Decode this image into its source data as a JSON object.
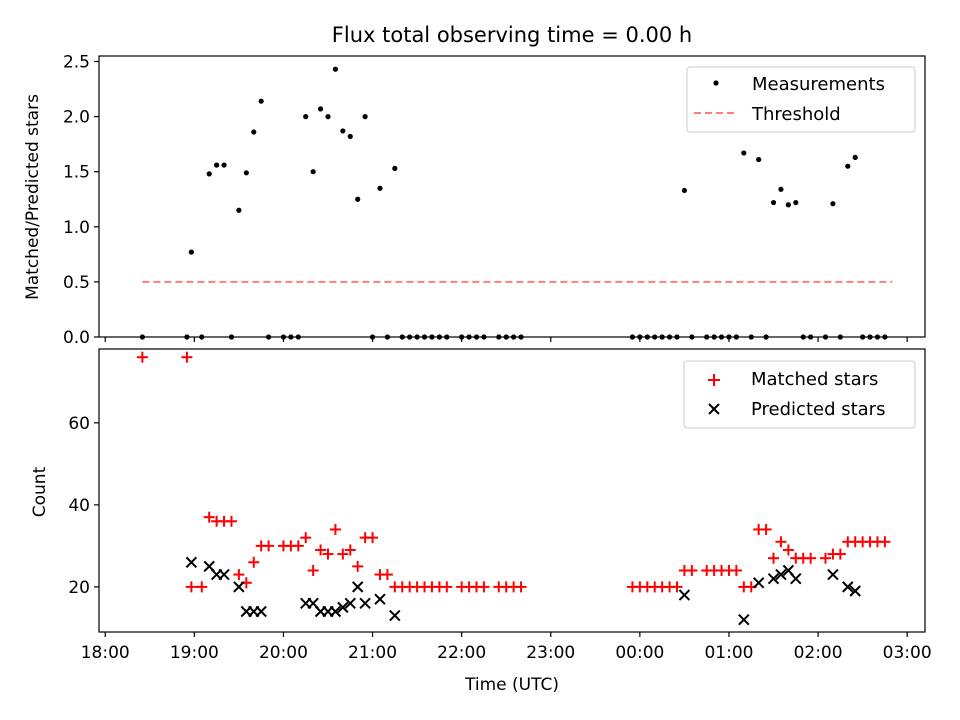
{
  "chart_data": [
    {
      "type": "scatter",
      "title": "Flux total observing time = 0.00 h",
      "xlabel": "",
      "ylabel": "Matched/Predicted stars",
      "ylim": [
        0,
        2.55
      ],
      "yticks": [
        0,
        0.5,
        1.0,
        1.5,
        2.0,
        2.5
      ],
      "ytick_labels": [
        "0.0",
        "0.5",
        "1.0",
        "1.5",
        "2.0",
        "2.5"
      ],
      "legend_position": "top-right",
      "series": [
        {
          "name": "Measurements",
          "marker": "dot",
          "color": "#000000",
          "points": [
            [
              "18:25",
              0
            ],
            [
              "18:55",
              0
            ],
            [
              "18:58",
              0.77
            ],
            [
              "19:05",
              0
            ],
            [
              "19:10",
              1.48
            ],
            [
              "19:15",
              1.56
            ],
            [
              "19:20",
              1.56
            ],
            [
              "19:25",
              0
            ],
            [
              "19:30",
              1.15
            ],
            [
              "19:35",
              1.49
            ],
            [
              "19:40",
              1.86
            ],
            [
              "19:45",
              2.14
            ],
            [
              "19:50",
              0
            ],
            [
              "20:00",
              0
            ],
            [
              "20:05",
              0
            ],
            [
              "20:10",
              0
            ],
            [
              "20:15",
              2.0
            ],
            [
              "20:20",
              1.5
            ],
            [
              "20:25",
              2.07
            ],
            [
              "20:30",
              2.0
            ],
            [
              "20:35",
              2.43
            ],
            [
              "20:40",
              1.87
            ],
            [
              "20:45",
              1.82
            ],
            [
              "20:50",
              1.25
            ],
            [
              "20:55",
              2.0
            ],
            [
              "21:00",
              0
            ],
            [
              "21:05",
              1.35
            ],
            [
              "21:10",
              0
            ],
            [
              "21:15",
              1.53
            ],
            [
              "21:20",
              0
            ],
            [
              "21:25",
              0
            ],
            [
              "21:30",
              0
            ],
            [
              "21:35",
              0
            ],
            [
              "21:40",
              0
            ],
            [
              "21:45",
              0
            ],
            [
              "21:50",
              0
            ],
            [
              "22:00",
              0
            ],
            [
              "22:05",
              0
            ],
            [
              "22:10",
              0
            ],
            [
              "22:15",
              0
            ],
            [
              "22:25",
              0
            ],
            [
              "22:30",
              0
            ],
            [
              "22:35",
              0
            ],
            [
              "22:40",
              0
            ],
            [
              "23:55",
              0
            ],
            [
              "00:00",
              0
            ],
            [
              "00:05",
              0
            ],
            [
              "00:10",
              0
            ],
            [
              "00:15",
              0
            ],
            [
              "00:20",
              0
            ],
            [
              "00:25",
              0
            ],
            [
              "00:30",
              1.33
            ],
            [
              "00:35",
              0
            ],
            [
              "00:45",
              0
            ],
            [
              "00:50",
              0
            ],
            [
              "00:55",
              0
            ],
            [
              "01:00",
              0
            ],
            [
              "01:05",
              0
            ],
            [
              "01:10",
              1.67
            ],
            [
              "01:15",
              0
            ],
            [
              "01:20",
              1.61
            ],
            [
              "01:25",
              0
            ],
            [
              "01:30",
              1.22
            ],
            [
              "01:35",
              1.34
            ],
            [
              "01:40",
              1.2
            ],
            [
              "01:45",
              1.22
            ],
            [
              "01:50",
              0
            ],
            [
              "01:55",
              0
            ],
            [
              "02:05",
              0
            ],
            [
              "02:10",
              1.21
            ],
            [
              "02:15",
              0
            ],
            [
              "02:20",
              1.55
            ],
            [
              "02:25",
              1.63
            ],
            [
              "02:30",
              0
            ],
            [
              "02:35",
              0
            ],
            [
              "02:40",
              0
            ],
            [
              "02:45",
              0
            ]
          ]
        },
        {
          "name": "Threshold",
          "marker": "dashed-line",
          "color": "#ff7f7f",
          "points": [
            [
              "18:25",
              0.5
            ],
            [
              "02:50",
              0.5
            ]
          ]
        }
      ]
    },
    {
      "type": "scatter",
      "title": "",
      "xlabel": "Time (UTC)",
      "ylabel": "Count",
      "ylim": [
        9,
        78
      ],
      "yticks": [
        20,
        40,
        60
      ],
      "ytick_labels": [
        "20",
        "40",
        "60"
      ],
      "x_start": "18:00",
      "x_end": "03:00",
      "xlim_hours": [
        17.93,
        27.2
      ],
      "xticks": [
        "18:00",
        "19:00",
        "20:00",
        "21:00",
        "22:00",
        "23:00",
        "00:00",
        "01:00",
        "02:00",
        "03:00"
      ],
      "legend_position": "top-right",
      "series": [
        {
          "name": "Matched stars",
          "marker": "plus",
          "color": "#ff0000",
          "points": [
            [
              "18:25",
              76
            ],
            [
              "18:55",
              76
            ],
            [
              "18:58",
              20
            ],
            [
              "19:05",
              20
            ],
            [
              "19:10",
              37
            ],
            [
              "19:15",
              36
            ],
            [
              "19:20",
              36
            ],
            [
              "19:25",
              36
            ],
            [
              "19:30",
              23
            ],
            [
              "19:35",
              21
            ],
            [
              "19:40",
              26
            ],
            [
              "19:45",
              30
            ],
            [
              "19:50",
              30
            ],
            [
              "20:00",
              30
            ],
            [
              "20:05",
              30
            ],
            [
              "20:10",
              30
            ],
            [
              "20:15",
              32
            ],
            [
              "20:20",
              24
            ],
            [
              "20:25",
              29
            ],
            [
              "20:30",
              28
            ],
            [
              "20:35",
              34
            ],
            [
              "20:40",
              28
            ],
            [
              "20:45",
              29
            ],
            [
              "20:50",
              25
            ],
            [
              "20:55",
              32
            ],
            [
              "21:00",
              32
            ],
            [
              "21:05",
              23
            ],
            [
              "21:10",
              23
            ],
            [
              "21:15",
              20
            ],
            [
              "21:20",
              20
            ],
            [
              "21:25",
              20
            ],
            [
              "21:30",
              20
            ],
            [
              "21:35",
              20
            ],
            [
              "21:40",
              20
            ],
            [
              "21:45",
              20
            ],
            [
              "21:50",
              20
            ],
            [
              "22:00",
              20
            ],
            [
              "22:05",
              20
            ],
            [
              "22:10",
              20
            ],
            [
              "22:15",
              20
            ],
            [
              "22:25",
              20
            ],
            [
              "22:30",
              20
            ],
            [
              "22:35",
              20
            ],
            [
              "22:40",
              20
            ],
            [
              "23:55",
              20
            ],
            [
              "00:00",
              20
            ],
            [
              "00:05",
              20
            ],
            [
              "00:10",
              20
            ],
            [
              "00:15",
              20
            ],
            [
              "00:20",
              20
            ],
            [
              "00:25",
              20
            ],
            [
              "00:30",
              24
            ],
            [
              "00:35",
              24
            ],
            [
              "00:45",
              24
            ],
            [
              "00:50",
              24
            ],
            [
              "00:55",
              24
            ],
            [
              "01:00",
              24
            ],
            [
              "01:05",
              24
            ],
            [
              "01:10",
              20
            ],
            [
              "01:15",
              20
            ],
            [
              "01:20",
              34
            ],
            [
              "01:25",
              34
            ],
            [
              "01:30",
              27
            ],
            [
              "01:35",
              31
            ],
            [
              "01:40",
              29
            ],
            [
              "01:45",
              27
            ],
            [
              "01:50",
              27
            ],
            [
              "01:55",
              27
            ],
            [
              "02:05",
              27
            ],
            [
              "02:10",
              28
            ],
            [
              "02:15",
              28
            ],
            [
              "02:20",
              31
            ],
            [
              "02:25",
              31
            ],
            [
              "02:30",
              31
            ],
            [
              "02:35",
              31
            ],
            [
              "02:40",
              31
            ],
            [
              "02:45",
              31
            ]
          ]
        },
        {
          "name": "Predicted stars",
          "marker": "x",
          "color": "#000000",
          "points": [
            [
              "18:58",
              26
            ],
            [
              "19:10",
              25
            ],
            [
              "19:15",
              23
            ],
            [
              "19:20",
              23
            ],
            [
              "19:30",
              20
            ],
            [
              "19:35",
              14
            ],
            [
              "19:40",
              14
            ],
            [
              "19:45",
              14
            ],
            [
              "20:15",
              16
            ],
            [
              "20:20",
              16
            ],
            [
              "20:25",
              14
            ],
            [
              "20:30",
              14
            ],
            [
              "20:35",
              14
            ],
            [
              "20:40",
              15
            ],
            [
              "20:45",
              16
            ],
            [
              "20:50",
              20
            ],
            [
              "20:55",
              16
            ],
            [
              "21:05",
              17
            ],
            [
              "21:15",
              13
            ],
            [
              "00:30",
              18
            ],
            [
              "01:10",
              12
            ],
            [
              "01:20",
              21
            ],
            [
              "01:30",
              22
            ],
            [
              "01:35",
              23
            ],
            [
              "01:40",
              24
            ],
            [
              "01:45",
              22
            ],
            [
              "02:10",
              23
            ],
            [
              "02:20",
              20
            ],
            [
              "02:25",
              19
            ]
          ]
        }
      ]
    }
  ]
}
